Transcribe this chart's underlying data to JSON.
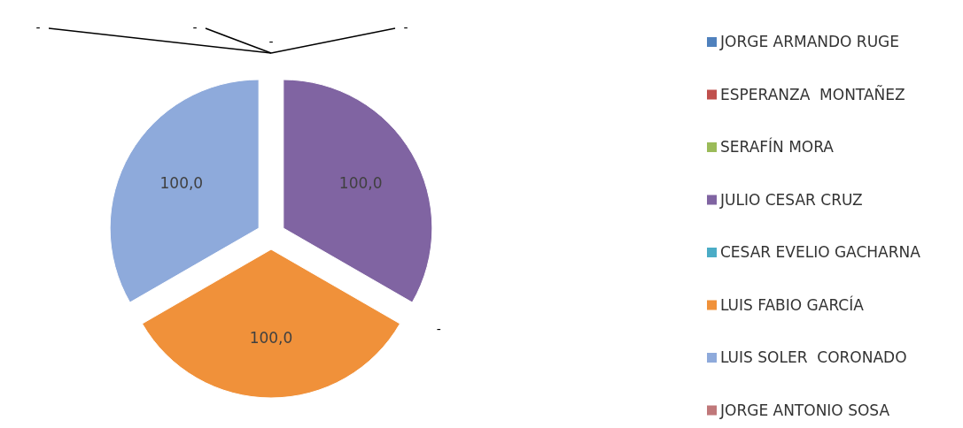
{
  "chart_data": {
    "type": "pie",
    "categories": [
      "JORGE ARMANDO RUGE",
      "ESPERANZA  MONTAÑEZ",
      "SERAFÍN MORA",
      "JULIO CESAR CRUZ",
      "CESAR EVELIO GACHARNA",
      "LUIS FABIO GARCÍA",
      "LUIS SOLER  CORONADO",
      "JORGE ANTONIO SOSA"
    ],
    "values": [
      0,
      0,
      0,
      100,
      0,
      100,
      100,
      0
    ],
    "colors": [
      "#4f81bd",
      "#c0504d",
      "#9bbb59",
      "#8064a2",
      "#4bacc6",
      "#f0913a",
      "#8eaadb",
      "#c0787a"
    ],
    "value_labels": [
      "-",
      "-",
      "-",
      "100,0",
      "-",
      "100,0",
      "100,0",
      "-"
    ],
    "legend": "right"
  }
}
